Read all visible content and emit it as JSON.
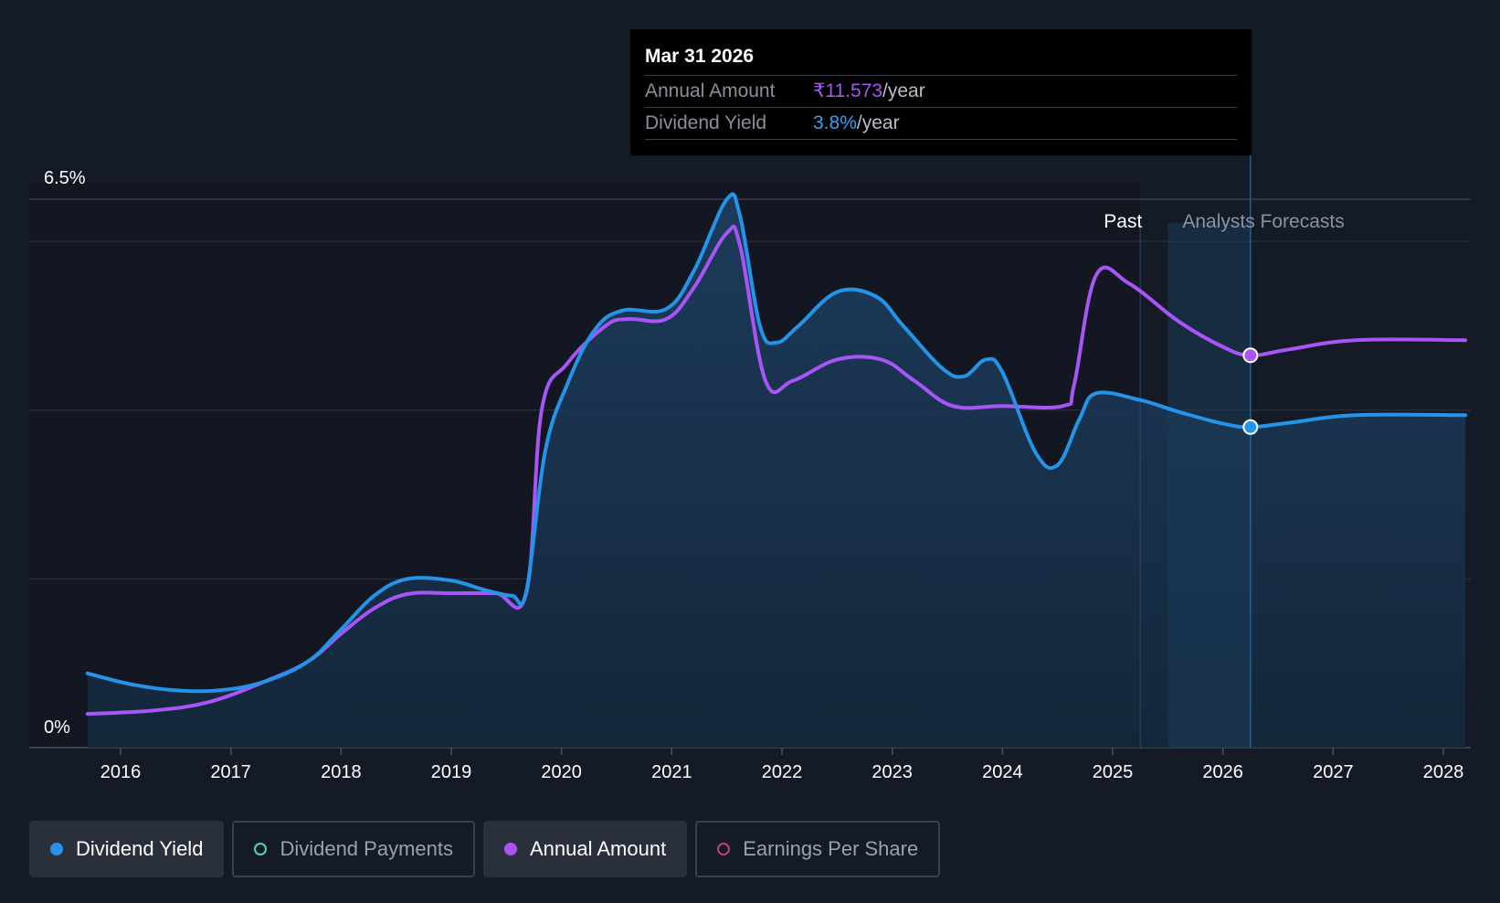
{
  "tooltip": {
    "date": "Mar 31 2026",
    "rows": [
      {
        "label": "Annual Amount",
        "value": "₹11.573",
        "unit": "/year"
      },
      {
        "label": "Dividend Yield",
        "value": "3.8%",
        "unit": "/year"
      }
    ]
  },
  "regions": {
    "past": "Past",
    "forecast": "Analysts Forecasts"
  },
  "legend": [
    {
      "label": "Dividend Yield",
      "active": true,
      "color": "#2394e8"
    },
    {
      "label": "Dividend Payments",
      "active": false,
      "color": "#4fd1c5"
    },
    {
      "label": "Annual Amount",
      "active": true,
      "color": "#a855f7"
    },
    {
      "label": "Earnings Per Share",
      "active": false,
      "color": "#c2417a"
    }
  ],
  "colors": {
    "background": "#151b26",
    "yield_line": "#2394e8",
    "annual_amount_line": "#a855f7",
    "area_fill": "#1b3550",
    "forecast_band": "#1c3a57"
  },
  "chart_data": {
    "type": "line",
    "y_axis": {
      "tick_labels": [
        "0%",
        "6.5%"
      ],
      "ylim": [
        0,
        6.5
      ],
      "gridlines": [
        0,
        2,
        4,
        6,
        6.5
      ]
    },
    "x_axis": {
      "tick_labels": [
        "2016",
        "2017",
        "2018",
        "2019",
        "2020",
        "2021",
        "2022",
        "2023",
        "2024",
        "2025",
        "2026",
        "2027",
        "2028"
      ],
      "xlim": [
        2015.2,
        2028.2
      ]
    },
    "past_end": 2025.25,
    "forecast_band": [
      2025.5,
      2026.25
    ],
    "highlight_x": 2026.25,
    "series": [
      {
        "name": "Dividend Yield",
        "points": [
          [
            2015.7,
            0.88
          ],
          [
            2016.1,
            0.75
          ],
          [
            2016.5,
            0.68
          ],
          [
            2016.9,
            0.68
          ],
          [
            2017.3,
            0.78
          ],
          [
            2017.7,
            1.02
          ],
          [
            2018.0,
            1.4
          ],
          [
            2018.3,
            1.8
          ],
          [
            2018.6,
            2.0
          ],
          [
            2019.0,
            1.98
          ],
          [
            2019.3,
            1.87
          ],
          [
            2019.55,
            1.8
          ],
          [
            2019.68,
            1.85
          ],
          [
            2019.85,
            3.5
          ],
          [
            2020.05,
            4.3
          ],
          [
            2020.3,
            4.95
          ],
          [
            2020.55,
            5.18
          ],
          [
            2020.95,
            5.2
          ],
          [
            2021.2,
            5.65
          ],
          [
            2021.5,
            6.5
          ],
          [
            2021.62,
            6.3
          ],
          [
            2021.8,
            5.0
          ],
          [
            2021.95,
            4.8
          ],
          [
            2022.15,
            5.0
          ],
          [
            2022.5,
            5.4
          ],
          [
            2022.85,
            5.35
          ],
          [
            2023.1,
            5.0
          ],
          [
            2023.45,
            4.5
          ],
          [
            2023.65,
            4.4
          ],
          [
            2023.85,
            4.6
          ],
          [
            2024.0,
            4.45
          ],
          [
            2024.3,
            3.5
          ],
          [
            2024.5,
            3.35
          ],
          [
            2024.7,
            3.9
          ],
          [
            2024.85,
            4.2
          ],
          [
            2025.25,
            4.12
          ],
          [
            2025.6,
            3.98
          ],
          [
            2026.0,
            3.84
          ],
          [
            2026.25,
            3.8
          ],
          [
            2026.6,
            3.85
          ],
          [
            2027.2,
            3.94
          ],
          [
            2028.2,
            3.94
          ]
        ]
      },
      {
        "name": "Annual Amount",
        "points": [
          [
            2015.7,
            0.4
          ],
          [
            2016.3,
            0.44
          ],
          [
            2016.8,
            0.54
          ],
          [
            2017.3,
            0.78
          ],
          [
            2017.7,
            1.02
          ],
          [
            2018.0,
            1.35
          ],
          [
            2018.3,
            1.65
          ],
          [
            2018.6,
            1.82
          ],
          [
            2019.0,
            1.83
          ],
          [
            2019.4,
            1.83
          ],
          [
            2019.68,
            1.83
          ],
          [
            2019.82,
            4.0
          ],
          [
            2020.05,
            4.55
          ],
          [
            2020.4,
            5.0
          ],
          [
            2020.6,
            5.08
          ],
          [
            2020.95,
            5.08
          ],
          [
            2021.2,
            5.45
          ],
          [
            2021.5,
            6.1
          ],
          [
            2021.62,
            5.95
          ],
          [
            2021.85,
            4.35
          ],
          [
            2022.1,
            4.35
          ],
          [
            2022.5,
            4.6
          ],
          [
            2022.9,
            4.6
          ],
          [
            2023.2,
            4.35
          ],
          [
            2023.55,
            4.05
          ],
          [
            2024.0,
            4.05
          ],
          [
            2024.55,
            4.05
          ],
          [
            2024.65,
            4.3
          ],
          [
            2024.85,
            5.6
          ],
          [
            2025.15,
            5.5
          ],
          [
            2025.6,
            5.05
          ],
          [
            2026.0,
            4.75
          ],
          [
            2026.25,
            4.65
          ],
          [
            2026.6,
            4.72
          ],
          [
            2027.2,
            4.83
          ],
          [
            2028.2,
            4.83
          ]
        ]
      }
    ]
  }
}
